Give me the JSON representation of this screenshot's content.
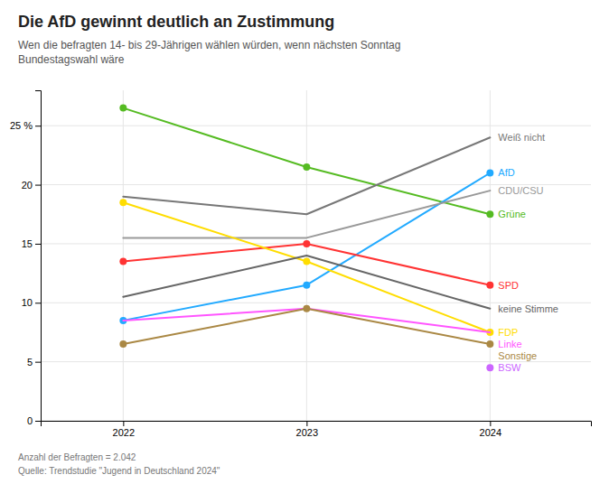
{
  "chart_data": {
    "type": "line",
    "title": "Die AfD gewinnt deutlich an Zustimmung",
    "subtitle": "Wen die befragten 14- bis 29-Jährigen wählen würden, wenn nächsten Sonntag\nBundestagswahl wäre",
    "annotations": [
      "Anzahl der Befragten = 2.042",
      "Quelle: Trendstudie \"Jugend in Deutschland 2024\""
    ],
    "x": [
      2022,
      2023,
      2024
    ],
    "xlim": [
      2021.55,
      2024.55
    ],
    "xticks": [
      2022,
      2023,
      2024
    ],
    "ylim": [
      0,
      28
    ],
    "yticks": [
      0,
      5,
      10,
      15,
      20,
      {
        "value": 25,
        "label": "25 %"
      }
    ],
    "grid": true,
    "series": [
      {
        "name": "Grüne",
        "color": "#55bb22",
        "values": [
          26.5,
          21.5,
          17.5
        ],
        "marker": "circle"
      },
      {
        "name": "AfD",
        "color": "#22aaff",
        "values": [
          8.5,
          11.5,
          21.0
        ],
        "marker": "circle"
      },
      {
        "name": "Weiß nicht",
        "color": "#777777",
        "values": [
          19.0,
          17.5,
          24.0
        ]
      },
      {
        "name": "CDU/CSU",
        "color": "#999999",
        "values": [
          15.5,
          15.5,
          19.5
        ]
      },
      {
        "name": "SPD",
        "color": "#ff3333",
        "values": [
          13.5,
          15.0,
          11.5
        ],
        "marker": "circle"
      },
      {
        "name": "FDP",
        "color": "#ffdd00",
        "values": [
          18.5,
          13.5,
          7.5
        ],
        "marker": "circle"
      },
      {
        "name": "keine Stimme",
        "color": "#666666",
        "values": [
          10.5,
          14.0,
          9.5
        ]
      },
      {
        "name": "Linke",
        "color": "#ff55ff",
        "values": [
          8.5,
          9.5,
          7.5
        ]
      },
      {
        "name": "Sonstige",
        "color": "#aa8844",
        "values": [
          6.5,
          9.5,
          6.5
        ],
        "marker": "circle"
      },
      {
        "name": "BSW",
        "color": "#cc66ff",
        "values": [
          null,
          null,
          4.5
        ],
        "marker": "circle"
      }
    ]
  }
}
